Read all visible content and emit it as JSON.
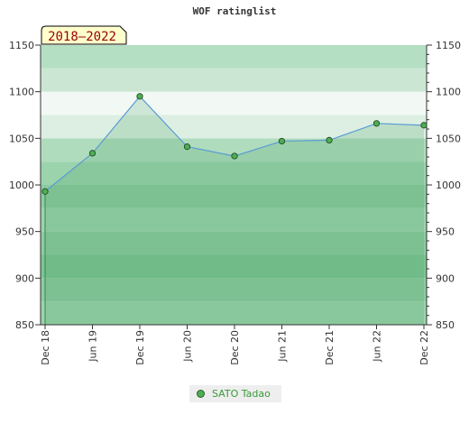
{
  "chart_data": {
    "type": "area",
    "title": "WOF ratinglist",
    "badge": "2018–2022",
    "categories": [
      "Dec 18",
      "Jun 19",
      "Dec 19",
      "Jun 20",
      "Dec 20",
      "Jun 21",
      "Dec 21",
      "Jun 22",
      "Dec 22"
    ],
    "series": [
      {
        "name": "SATO Tadao",
        "values": [
          993,
          1034,
          1095,
          1041,
          1031,
          1047,
          1048,
          1066,
          1064
        ]
      }
    ],
    "ylim": [
      850,
      1150
    ],
    "yticks": [
      850,
      900,
      950,
      1000,
      1050,
      1100,
      1150
    ],
    "grid": true,
    "legend_position": "bottom-center",
    "colors": {
      "line": "#5b9bd5",
      "marker": "#4caf50",
      "area": "#7cc394"
    }
  }
}
